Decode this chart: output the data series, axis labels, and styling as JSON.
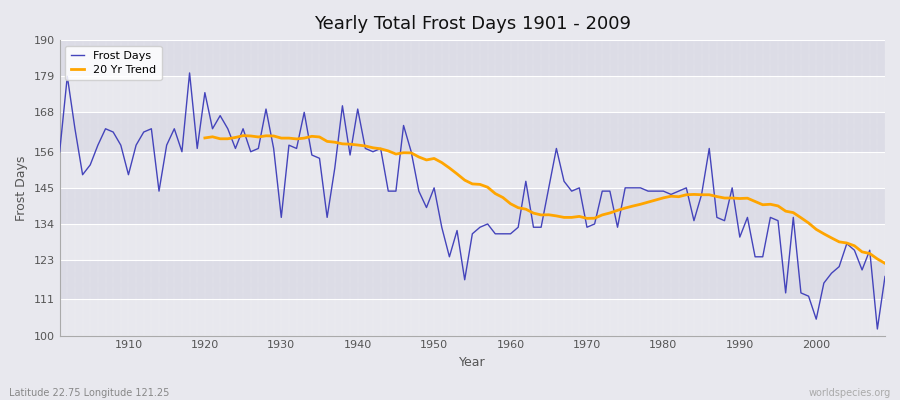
{
  "title": "Yearly Total Frost Days 1901 - 2009",
  "xlabel": "Year",
  "ylabel": "Frost Days",
  "subtitle": "Latitude 22.75 Longitude 121.25",
  "watermark": "worldspecies.org",
  "ylim": [
    100,
    190
  ],
  "yticks": [
    100,
    111,
    123,
    134,
    145,
    156,
    168,
    179,
    190
  ],
  "xticks": [
    1910,
    1920,
    1930,
    1940,
    1950,
    1960,
    1970,
    1980,
    1990,
    2000
  ],
  "xlim": [
    1901,
    2009
  ],
  "frost_days": {
    "1901": 156,
    "1902": 179,
    "1903": 163,
    "1904": 149,
    "1905": 152,
    "1906": 158,
    "1907": 163,
    "1908": 162,
    "1909": 158,
    "1910": 149,
    "1911": 158,
    "1912": 162,
    "1913": 163,
    "1914": 144,
    "1915": 158,
    "1916": 163,
    "1917": 156,
    "1918": 180,
    "1919": 157,
    "1920": 174,
    "1921": 163,
    "1922": 167,
    "1923": 163,
    "1924": 157,
    "1925": 163,
    "1926": 156,
    "1927": 157,
    "1928": 169,
    "1929": 157,
    "1930": 136,
    "1931": 158,
    "1932": 157,
    "1933": 168,
    "1934": 155,
    "1935": 154,
    "1936": 136,
    "1937": 151,
    "1938": 170,
    "1939": 155,
    "1940": 169,
    "1941": 157,
    "1942": 156,
    "1943": 157,
    "1944": 144,
    "1945": 144,
    "1946": 164,
    "1947": 156,
    "1948": 144,
    "1949": 139,
    "1950": 145,
    "1951": 133,
    "1952": 124,
    "1953": 132,
    "1954": 117,
    "1955": 131,
    "1956": 133,
    "1957": 134,
    "1958": 131,
    "1959": 131,
    "1960": 131,
    "1961": 133,
    "1962": 147,
    "1963": 133,
    "1964": 133,
    "1965": 145,
    "1966": 157,
    "1967": 147,
    "1968": 144,
    "1969": 145,
    "1970": 133,
    "1971": 134,
    "1972": 144,
    "1973": 144,
    "1974": 133,
    "1975": 145,
    "1976": 145,
    "1977": 145,
    "1978": 144,
    "1979": 144,
    "1980": 144,
    "1981": 143,
    "1982": 144,
    "1983": 145,
    "1984": 135,
    "1985": 143,
    "1986": 157,
    "1987": 136,
    "1988": 135,
    "1989": 145,
    "1990": 130,
    "1991": 136,
    "1992": 124,
    "1993": 124,
    "1994": 136,
    "1995": 135,
    "1996": 113,
    "1997": 136,
    "1998": 113,
    "1999": 112,
    "2000": 105,
    "2001": 116,
    "2002": 119,
    "2003": 121,
    "2004": 128,
    "2005": 126,
    "2006": 120,
    "2007": 126,
    "2008": 102,
    "2009": 118
  },
  "line_color": "#4444bb",
  "trend_color": "#FFA500",
  "bg_color": "#e8e8ee",
  "band_color_light": "#dcdce6",
  "band_color_dark": "#e8e8ee",
  "legend_labels": [
    "Frost Days",
    "20 Yr Trend"
  ],
  "trend_window": 20
}
